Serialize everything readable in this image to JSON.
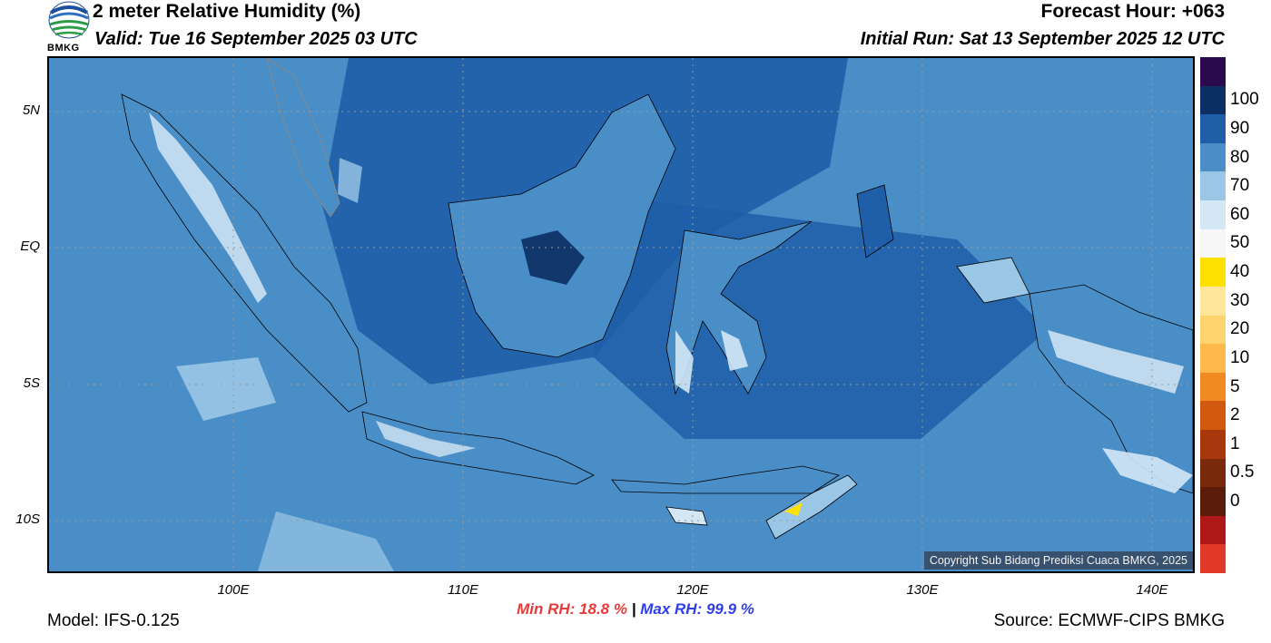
{
  "header": {
    "title": "2 meter Relative Humidity (%)",
    "valid": "Valid: Tue 16 September 2025 03 UTC",
    "forecast_hour": "Forecast Hour: +063",
    "initial_run": "Initial Run: Sat 13 September 2025 12 UTC"
  },
  "logo": {
    "text": "BMKG"
  },
  "axes": {
    "lat_labels": [
      "5N",
      "EQ",
      "5S",
      "10S"
    ],
    "lon_labels": [
      "100E",
      "110E",
      "120E",
      "130E",
      "140E"
    ]
  },
  "colorbar": {
    "labels": [
      "100",
      "90",
      "80",
      "70",
      "60",
      "50",
      "40",
      "30",
      "20",
      "10",
      "5",
      "2",
      "1",
      "0.5",
      "0"
    ],
    "colors": [
      "#2a0a4d",
      "#0b2e63",
      "#1f5ea8",
      "#4a8ec7",
      "#9bc7e6",
      "#d3e7f5",
      "#f7f7f7",
      "#ffe100",
      "#ffe69a",
      "#ffd36e",
      "#ffb94a",
      "#f28a22",
      "#d25a10",
      "#a8380c",
      "#7a2a0c",
      "#5c1c0a",
      "#b01818",
      "#e23a2a"
    ]
  },
  "stats": {
    "min_label": "Min RH:",
    "min_value": "18.8 %",
    "separator": "|",
    "max_label": "Max RH:",
    "max_value": "99.9 %"
  },
  "footer": {
    "model": "Model: IFS-0.125",
    "source": "Source: ECMWF-CIPS BMKG",
    "copyright": "Copyright Sub Bidang Prediksi Cuaca BMKG, 2025"
  }
}
